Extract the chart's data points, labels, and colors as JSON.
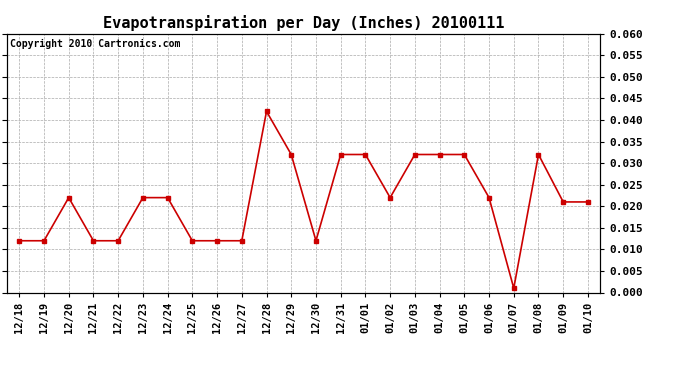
{
  "title": "Evapotranspiration per Day (Inches) 20100111",
  "copyright_text": "Copyright 2010 Cartronics.com",
  "x_labels": [
    "12/18",
    "12/19",
    "12/20",
    "12/21",
    "12/22",
    "12/23",
    "12/24",
    "12/25",
    "12/26",
    "12/27",
    "12/28",
    "12/29",
    "12/30",
    "12/31",
    "01/01",
    "01/02",
    "01/03",
    "01/04",
    "01/05",
    "01/06",
    "01/07",
    "01/08",
    "01/09",
    "01/10"
  ],
  "y_values": [
    0.012,
    0.012,
    0.022,
    0.012,
    0.012,
    0.022,
    0.022,
    0.012,
    0.012,
    0.012,
    0.042,
    0.032,
    0.012,
    0.032,
    0.032,
    0.022,
    0.032,
    0.032,
    0.032,
    0.022,
    0.001,
    0.032,
    0.021,
    0.021
  ],
  "line_color": "#cc0000",
  "marker": "s",
  "marker_size": 3,
  "ylim": [
    0.0,
    0.06
  ],
  "yticks": [
    0.0,
    0.005,
    0.01,
    0.015,
    0.02,
    0.025,
    0.03,
    0.035,
    0.04,
    0.045,
    0.05,
    0.055,
    0.06
  ],
  "bg_color": "#ffffff",
  "grid_color": "#aaaaaa",
  "title_fontsize": 11,
  "copyright_fontsize": 7,
  "tick_fontsize": 7.5,
  "ytick_fontsize": 8
}
